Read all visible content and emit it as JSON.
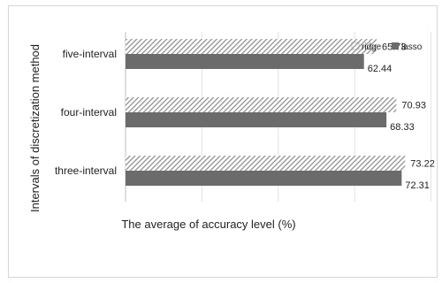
{
  "chart_data": {
    "type": "bar",
    "orientation": "horizontal",
    "categories": [
      "five-interval",
      "four-interval",
      "three-interval"
    ],
    "series": [
      {
        "name": "ridge",
        "values": [
          65.73,
          70.93,
          73.22
        ],
        "pattern": "diagonal-hatch",
        "color": "#8a8a8a"
      },
      {
        "name": "lasso",
        "values": [
          62.44,
          68.33,
          72.31
        ],
        "color": "#6b6b6b"
      }
    ],
    "xlabel": "The average of accuracy level (%)",
    "ylabel": "Intervals of discretization method",
    "xlim": [
      0,
      80
    ],
    "grid": true,
    "legend": "top-right"
  }
}
